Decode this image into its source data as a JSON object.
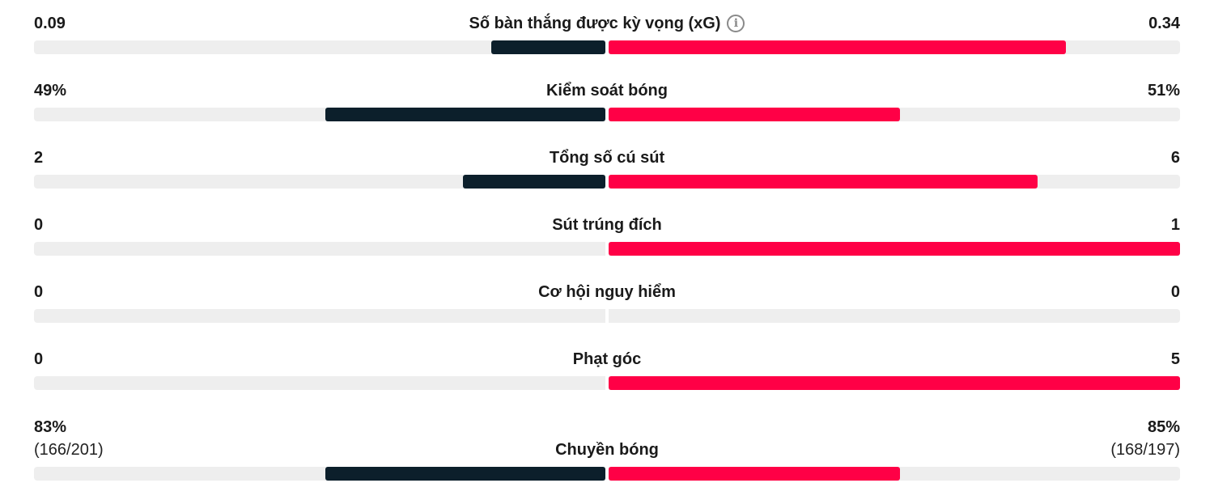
{
  "colors": {
    "home_bar": "#0c1f2b",
    "away_bar": "#ff0046",
    "track": "#eeeeee",
    "text": "#1a1a1a"
  },
  "stats": [
    {
      "label": "Số bàn thắng được kỳ vọng (xG)",
      "info_icon": "info-circle-icon",
      "home_value": "0.09",
      "away_value": "0.34",
      "home_share": 0.2,
      "away_share": 0.8
    },
    {
      "label": "Kiểm soát bóng",
      "home_value": "49%",
      "away_value": "51%",
      "home_share": 0.49,
      "away_share": 0.51
    },
    {
      "label": "Tổng số cú sút",
      "home_value": "2",
      "away_value": "6",
      "home_share": 0.25,
      "away_share": 0.75
    },
    {
      "label": "Sút trúng đích",
      "home_value": "0",
      "away_value": "1",
      "home_share": 0,
      "away_share": 1
    },
    {
      "label": "Cơ hội nguy hiểm",
      "home_value": "0",
      "away_value": "0",
      "home_share": 0,
      "away_share": 0
    },
    {
      "label": "Phạt góc",
      "home_value": "0",
      "away_value": "5",
      "home_share": 0,
      "away_share": 1
    },
    {
      "label": "Chuyền bóng",
      "home_value": "83%",
      "away_value": "85%",
      "home_detail": "(166/201)",
      "away_detail": "(168/197)",
      "home_share": 0.49,
      "away_share": 0.51
    }
  ]
}
